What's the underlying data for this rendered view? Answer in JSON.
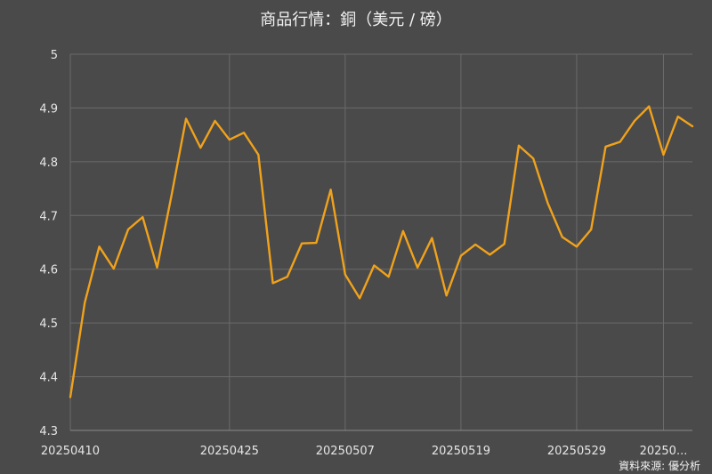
{
  "chart_data": {
    "type": "line",
    "title": "商品行情：銅（美元 / 磅）",
    "source": "資料來源: 優分析",
    "ylim": [
      4.3,
      5
    ],
    "y_ticks": [
      "4.3",
      "4.4",
      "4.5",
      "4.6",
      "4.7",
      "4.8",
      "4.9",
      "5"
    ],
    "x_tick_labels": [
      {
        "label": "20250410",
        "index": 0
      },
      {
        "label": "20250425",
        "index": 11
      },
      {
        "label": "20250507",
        "index": 19
      },
      {
        "label": "20250519",
        "index": 27
      },
      {
        "label": "20250529",
        "index": 35
      },
      {
        "label": "20250...",
        "index": 41
      }
    ],
    "grid": true,
    "series": [
      {
        "color": "#f0a21c",
        "values": [
          4.362,
          4.538,
          4.642,
          4.601,
          4.674,
          4.697,
          4.603,
          4.738,
          4.88,
          4.826,
          4.876,
          4.841,
          4.854,
          4.813,
          4.574,
          4.586,
          4.648,
          4.649,
          4.748,
          4.59,
          4.546,
          4.607,
          4.586,
          4.671,
          4.603,
          4.658,
          4.551,
          4.625,
          4.646,
          4.627,
          4.647,
          4.83,
          4.806,
          4.723,
          4.66,
          4.642,
          4.674,
          4.828,
          4.837,
          4.876,
          4.903,
          4.813,
          4.884,
          4.866
        ]
      }
    ]
  }
}
